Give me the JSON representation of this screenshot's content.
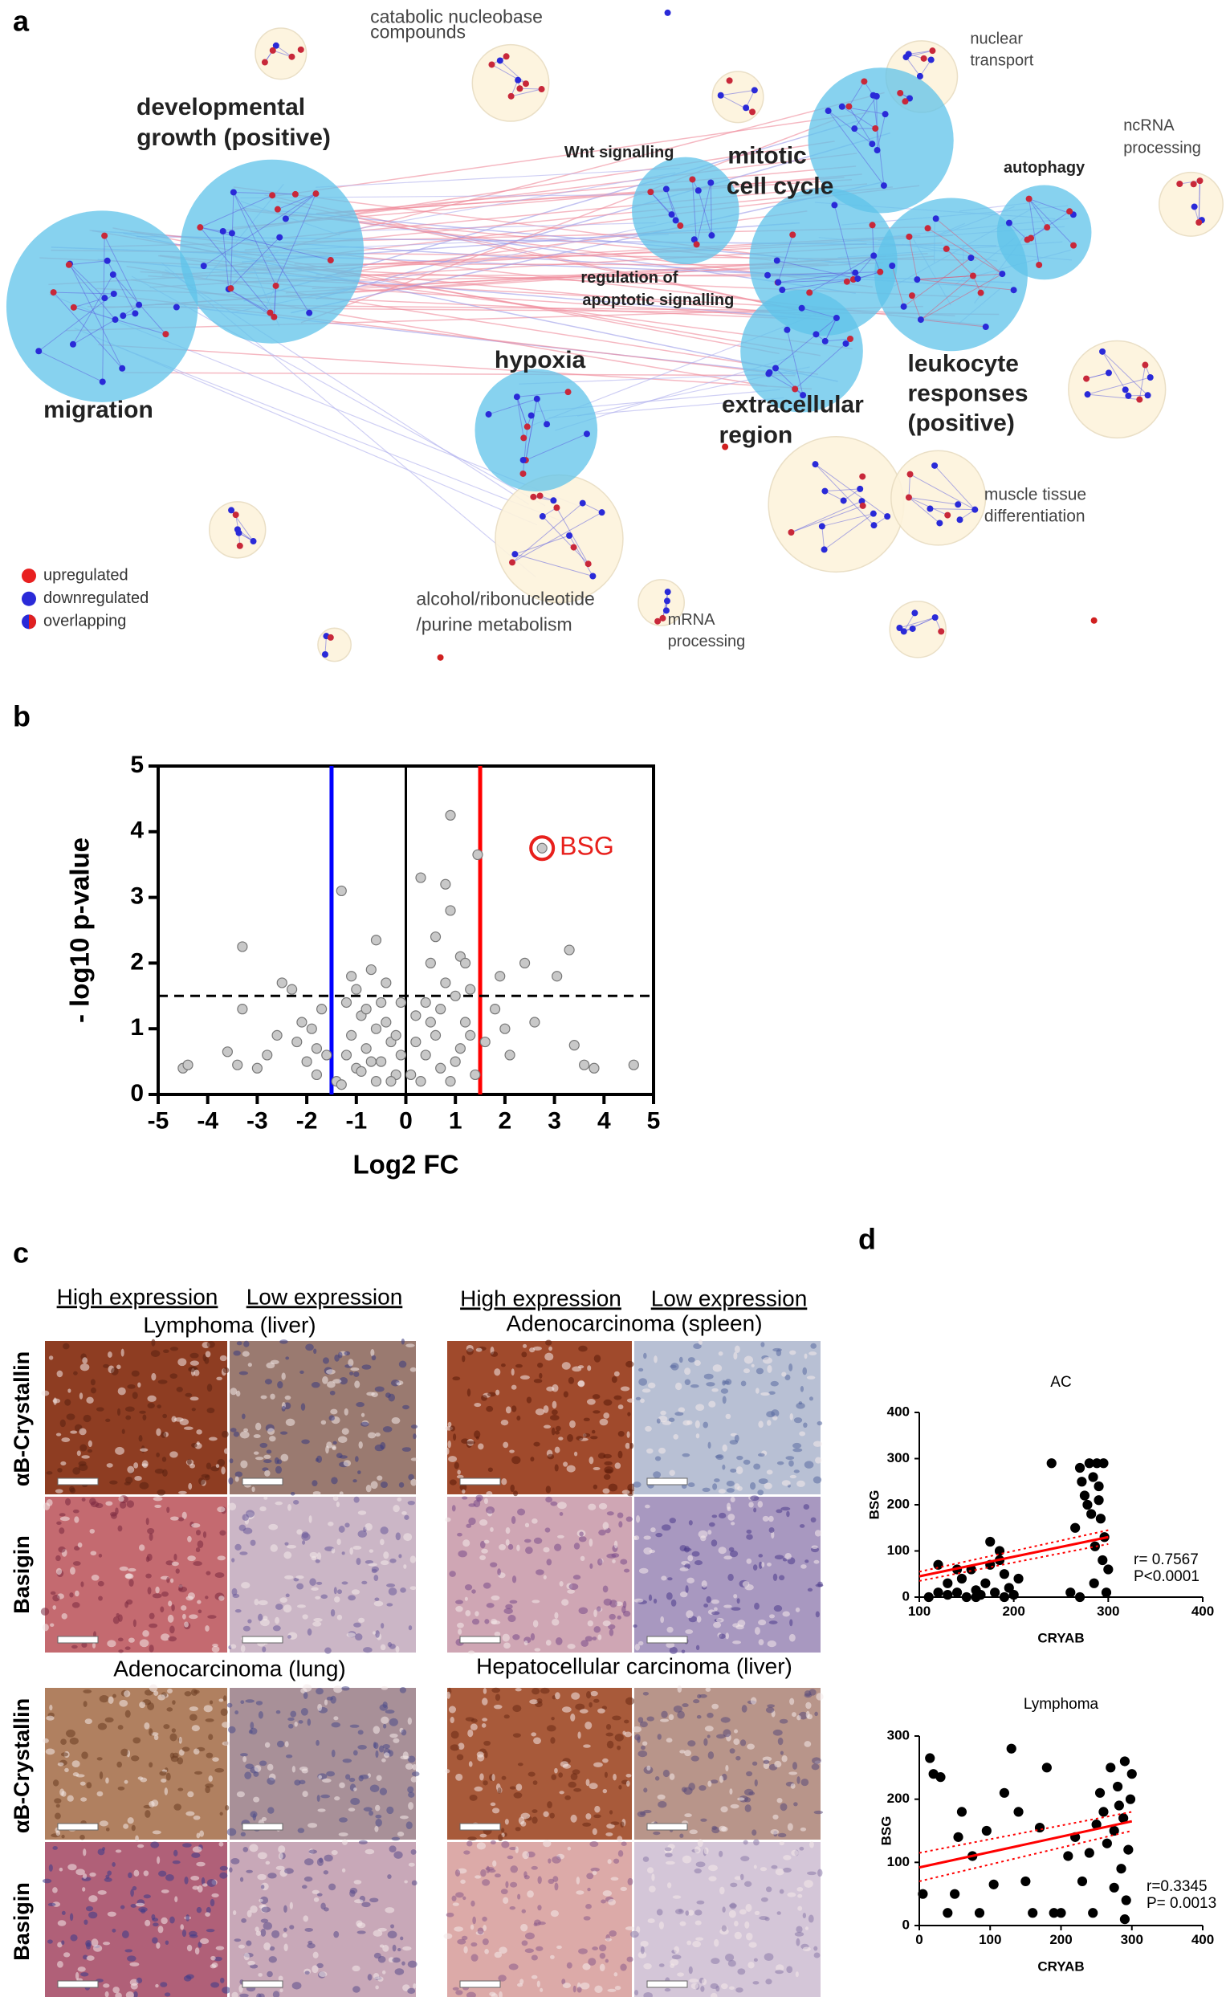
{
  "panel_labels": [
    "a",
    "b",
    "c",
    "d"
  ],
  "network": {
    "labels": [
      {
        "lines": [
          "catabolic nucleobase",
          "compounds"
        ]
      },
      {
        "lines": [
          "developmental",
          "growth (positive)"
        ]
      },
      {
        "lines": [
          "migration"
        ]
      },
      {
        "lines": [
          "Wnt signalling"
        ]
      },
      {
        "lines": [
          "mitotic",
          "cell cycle"
        ]
      },
      {
        "lines": [
          "autophagy"
        ]
      },
      {
        "lines": [
          "regulation of",
          "apoptotic signalling"
        ]
      },
      {
        "lines": [
          "hypoxia"
        ]
      },
      {
        "lines": [
          "extracellular",
          "region"
        ]
      },
      {
        "lines": [
          "leukocyte",
          "responses",
          "(positive)"
        ]
      },
      {
        "lines": [
          "nuclear",
          "transport"
        ]
      },
      {
        "lines": [
          "ncRNA",
          "processing"
        ]
      },
      {
        "lines": [
          "muscle tissue",
          "differentiation"
        ]
      },
      {
        "lines": [
          "alcohol/ribonucleotide",
          "/purine metabolism"
        ]
      },
      {
        "lines": [
          "mRNA",
          "processing"
        ]
      }
    ],
    "legend": [
      "upregulated",
      "downregulated",
      "overlapping"
    ]
  },
  "chart_data": [
    {
      "type": "scatter",
      "xlabel": "Log2 FC",
      "ylabel": "- log10 p-value",
      "xlim": [
        -5,
        5
      ],
      "ylim": [
        0,
        5
      ],
      "xticks": [
        -5,
        -4,
        -3,
        -2,
        -1,
        0,
        1,
        2,
        3,
        4,
        5
      ],
      "yticks": [
        0,
        1,
        2,
        3,
        4,
        5
      ],
      "color": "#c8c8c8",
      "x": [
        -4.5,
        -4.4,
        -3.6,
        -3.4,
        -3.3,
        -3.3,
        -3.0,
        -2.8,
        -2.5,
        -2.3,
        -2.2,
        -2.0,
        -1.9,
        -1.8,
        -1.7,
        -1.6,
        -1.3,
        -1.2,
        -1.1,
        -1.0,
        -0.9,
        -0.8,
        -0.7,
        -0.6,
        -0.5,
        -0.4,
        -0.3,
        -0.2,
        -0.1,
        -1.4,
        -1.2,
        -1.0,
        -0.8,
        -0.6,
        -0.4,
        -0.2,
        -1.3,
        -1.1,
        -0.9,
        -0.7,
        -0.5,
        -0.3,
        -0.6,
        -2.6,
        -2.1,
        -1.8,
        0.1,
        0.2,
        0.3,
        0.4,
        0.5,
        0.6,
        0.7,
        0.8,
        0.9,
        1.0,
        1.1,
        1.2,
        1.3,
        1.4,
        0.2,
        0.4,
        0.6,
        0.8,
        1.0,
        1.2,
        0.3,
        0.5,
        0.7,
        0.9,
        1.1,
        1.3,
        1.45,
        1.6,
        1.8,
        1.9,
        2.1,
        2.4,
        2.6,
        3.05,
        3.3,
        3.4,
        3.6,
        3.8,
        4.6,
        2.0,
        0.9,
        -0.1
      ],
      "y": [
        0.4,
        0.45,
        0.65,
        0.45,
        2.25,
        1.3,
        0.4,
        0.6,
        1.7,
        1.6,
        0.8,
        0.5,
        1.0,
        0.3,
        1.3,
        0.6,
        3.1,
        1.4,
        0.9,
        0.4,
        1.2,
        0.7,
        1.9,
        2.35,
        0.5,
        1.1,
        0.8,
        0.3,
        1.4,
        0.2,
        0.6,
        1.6,
        1.3,
        0.2,
        1.7,
        0.9,
        0.15,
        1.8,
        0.35,
        0.5,
        1.4,
        0.2,
        1.0,
        0.9,
        1.1,
        0.7,
        0.3,
        1.2,
        3.3,
        0.6,
        2.0,
        2.4,
        0.4,
        3.2,
        4.25,
        1.5,
        2.1,
        2.0,
        0.9,
        0.3,
        0.8,
        1.4,
        0.9,
        1.7,
        0.5,
        1.1,
        0.2,
        1.1,
        1.3,
        2.8,
        0.7,
        1.6,
        3.65,
        0.8,
        1.3,
        1.8,
        0.6,
        2.0,
        1.1,
        1.8,
        2.2,
        0.75,
        0.45,
        0.4,
        0.45,
        1.0,
        0.2,
        0.6
      ],
      "thresholds": {
        "down": -1.5,
        "up": 1.5,
        "p": 1.5,
        "down_color": "#0000ff",
        "up_color": "#ff0000"
      },
      "highlight": {
        "label": "BSG",
        "x": 2.75,
        "y": 3.75,
        "color": "#e8201c"
      }
    },
    {
      "type": "scatter",
      "title": "AC",
      "xlabel": "CRYAB",
      "ylabel": "BSG",
      "xlim": [
        100,
        400
      ],
      "ylim": [
        0,
        400
      ],
      "xticks": [
        100,
        200,
        300,
        400
      ],
      "yticks": [
        0,
        100,
        200,
        300,
        400
      ],
      "color": "#000000",
      "x": [
        110,
        120,
        130,
        140,
        145,
        150,
        155,
        160,
        165,
        170,
        175,
        180,
        185,
        190,
        195,
        200,
        205,
        140,
        175,
        160,
        120,
        130,
        190,
        185,
        240,
        260,
        265,
        270,
        272,
        275,
        278,
        280,
        282,
        284,
        286,
        288,
        290,
        292,
        294,
        295,
        296,
        298,
        300,
        285,
        270,
        290
      ],
      "y": [
        0,
        70,
        5,
        10,
        40,
        0,
        60,
        15,
        5,
        30,
        70,
        10,
        100,
        50,
        20,
        5,
        40,
        60,
        120,
        0,
        10,
        30,
        0,
        80,
        290,
        10,
        150,
        280,
        250,
        220,
        200,
        290,
        180,
        260,
        110,
        290,
        240,
        170,
        80,
        290,
        130,
        10,
        60,
        30,
        0,
        210
      ],
      "fit": {
        "x": [
          100,
          300
        ],
        "y": [
          45,
          130
        ]
      },
      "ci_upper": {
        "x": [
          100,
          300
        ],
        "y": [
          55,
          145
        ]
      },
      "ci_lower": {
        "x": [
          100,
          300
        ],
        "y": [
          35,
          115
        ]
      },
      "fit_color": "#ff0000",
      "annotations": [
        "r= 0.7567",
        "P<0.0001"
      ]
    },
    {
      "type": "scatter",
      "title": "Lymphoma",
      "xlabel": "CRYAB",
      "ylabel": "BSG",
      "xlim": [
        0,
        400
      ],
      "ylim": [
        0,
        300
      ],
      "xticks": [
        0,
        100,
        200,
        300,
        400
      ],
      "yticks": [
        0,
        100,
        200,
        300
      ],
      "color": "#000000",
      "x": [
        5,
        15,
        20,
        30,
        40,
        50,
        55,
        60,
        75,
        85,
        95,
        105,
        120,
        130,
        140,
        150,
        160,
        170,
        180,
        190,
        200,
        210,
        220,
        230,
        240,
        245,
        255,
        260,
        265,
        270,
        275,
        280,
        285,
        288,
        290,
        292,
        295,
        298,
        300,
        290,
        282,
        275,
        250
      ],
      "y": [
        50,
        265,
        240,
        235,
        20,
        50,
        140,
        180,
        110,
        20,
        150,
        65,
        210,
        280,
        180,
        70,
        20,
        155,
        250,
        20,
        20,
        110,
        140,
        70,
        115,
        20,
        210,
        180,
        130,
        250,
        150,
        220,
        90,
        170,
        260,
        40,
        120,
        200,
        240,
        10,
        190,
        60,
        160
      ],
      "fit": {
        "x": [
          0,
          300
        ],
        "y": [
          92,
          165
        ]
      },
      "ci_upper": {
        "x": [
          0,
          300
        ],
        "y": [
          115,
          180
        ]
      },
      "ci_lower": {
        "x": [
          0,
          300
        ],
        "y": [
          70,
          150
        ]
      },
      "fit_color": "#ff0000",
      "annotations": [
        "r=0.3345",
        "P= 0.0013"
      ]
    }
  ],
  "ihc": {
    "header": {
      "high": "High expression",
      "low": "Low expression"
    },
    "row_labels": [
      "αB-Crystallin",
      "Basigin"
    ],
    "groups": [
      "Lymphoma (liver)",
      "Adenocarcinoma (spleen)",
      "Adenocarcinoma (lung)",
      "Hepatocellular carcinoma (liver)"
    ]
  }
}
